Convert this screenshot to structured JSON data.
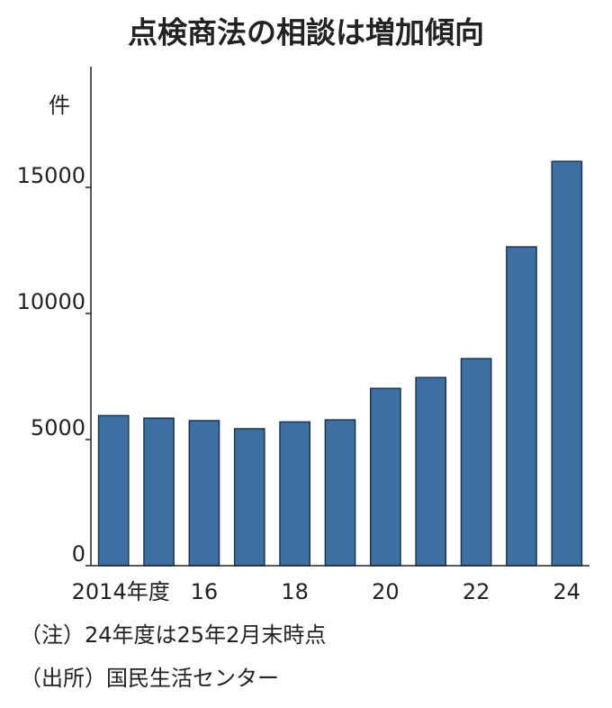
{
  "chart_data": {
    "type": "bar",
    "title": "点検商法の相談は増加傾向",
    "y_label": "件",
    "categories": [
      "2014年度",
      null,
      "16",
      null,
      "18",
      null,
      "20",
      null,
      "22",
      null,
      "24"
    ],
    "values": [
      5950,
      5850,
      5750,
      5430,
      5700,
      5780,
      7030,
      7460,
      8210,
      12640,
      16030
    ],
    "color": "#3d6fa0",
    "ylim": [
      0,
      20000
    ],
    "yticks": [
      0,
      5000,
      10000,
      15000
    ],
    "grid": false,
    "notes": [
      "（注）24年度は25年2月末時点",
      "（出所）国民生活センター"
    ]
  }
}
